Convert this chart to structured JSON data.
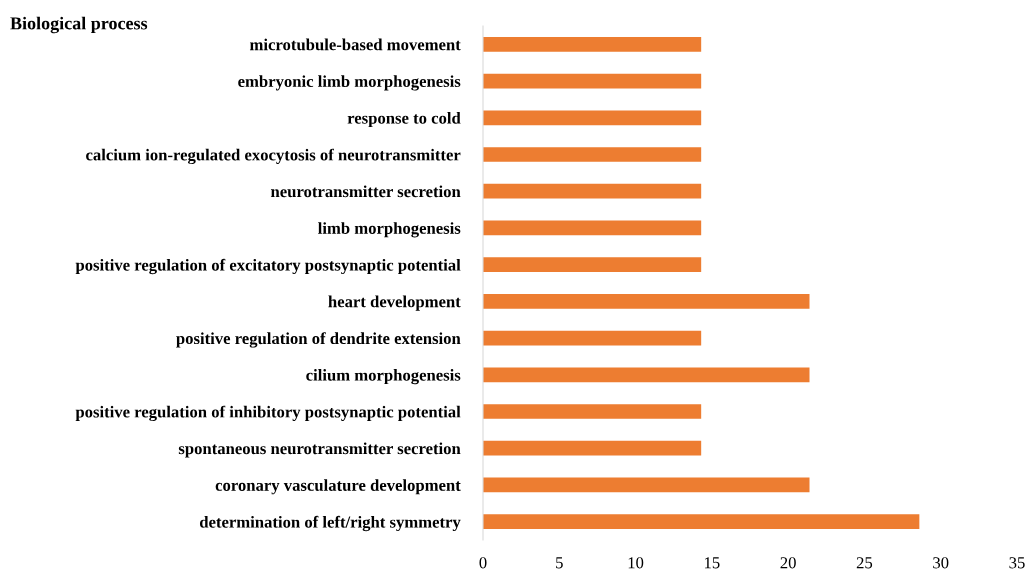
{
  "chart_data": {
    "type": "bar",
    "orientation": "horizontal",
    "title": "Biological process",
    "categories": [
      "microtubule-based movement",
      "embryonic limb morphogenesis",
      "response to cold",
      "calcium ion-regulated exocytosis of neurotransmitter",
      "neurotransmitter secretion",
      "limb morphogenesis",
      "positive regulation of excitatory postsynaptic potential",
      "heart development",
      "positive regulation of dendrite extension",
      "cilium morphogenesis",
      "positive regulation of inhibitory postsynaptic potential",
      "spontaneous neurotransmitter secretion",
      "coronary vasculature development",
      "determination of left/right symmetry"
    ],
    "values": [
      14.3,
      14.3,
      14.3,
      14.3,
      14.3,
      14.3,
      14.3,
      21.4,
      14.3,
      21.4,
      14.3,
      14.3,
      21.4,
      28.6
    ],
    "color": "#ed7d31",
    "xlim": [
      0,
      35
    ],
    "xticks": [
      0,
      5,
      10,
      15,
      20,
      25,
      30,
      35
    ],
    "grid": false,
    "legend": false
  }
}
